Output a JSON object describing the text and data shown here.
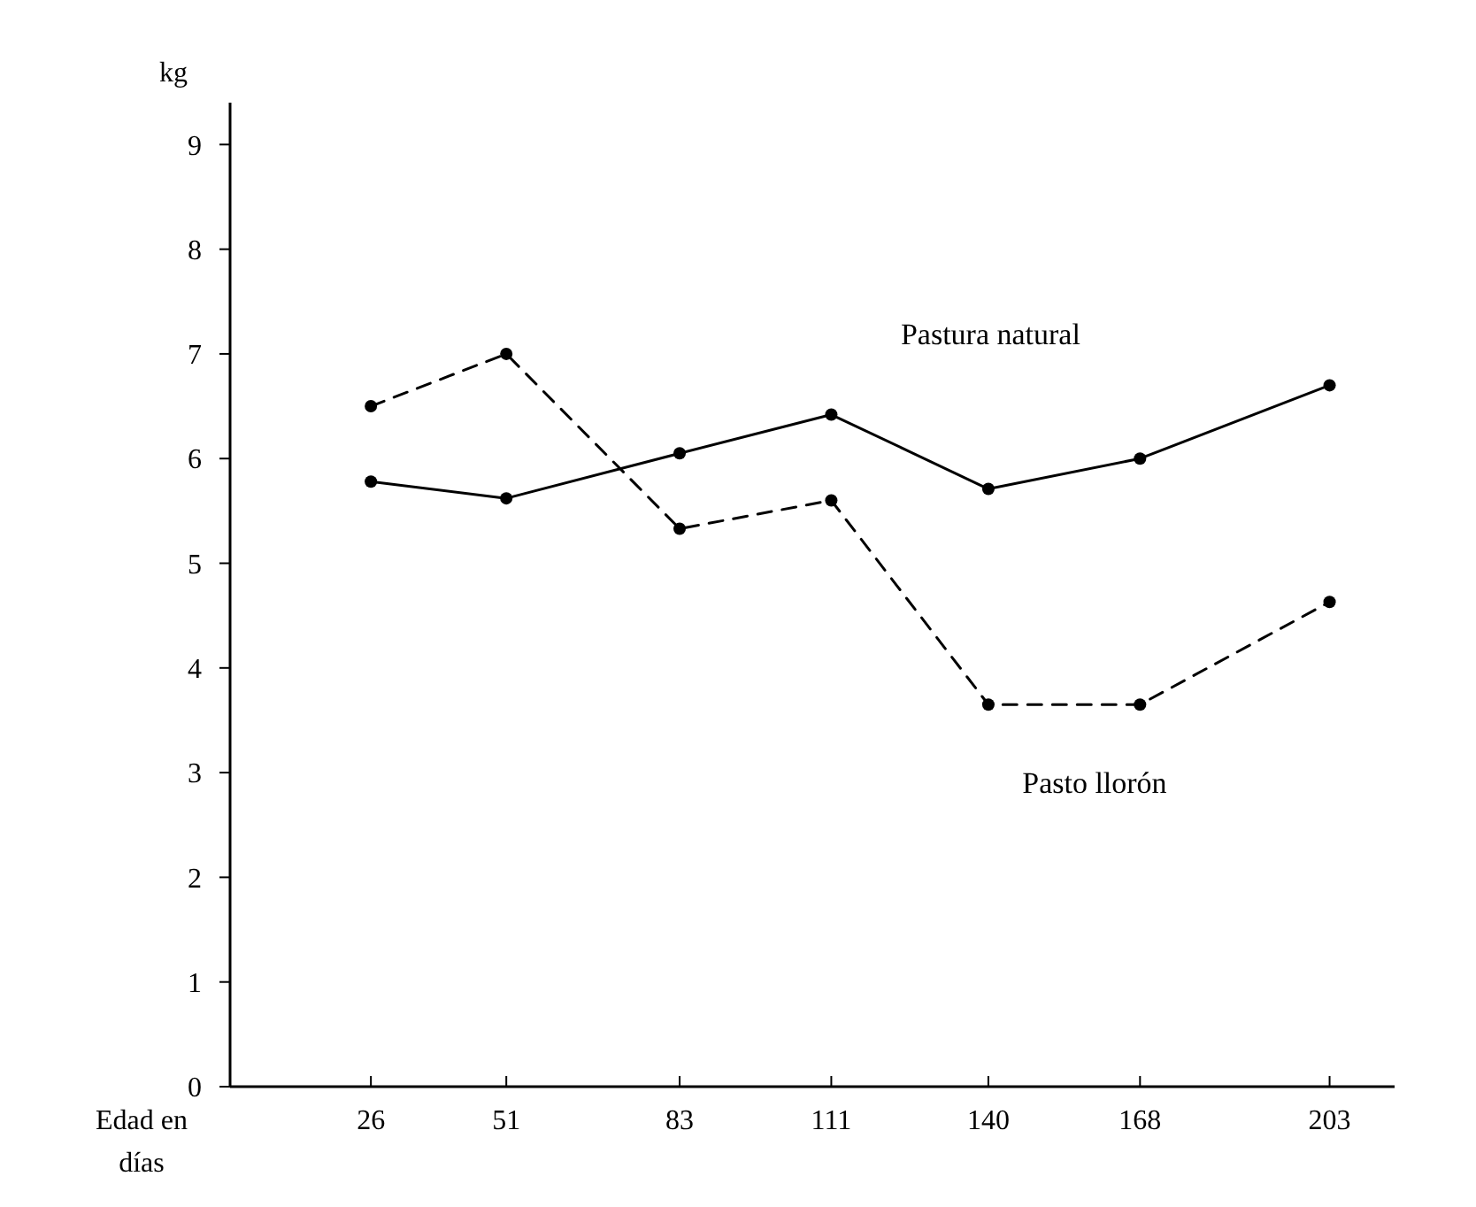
{
  "chart_data": {
    "type": "line",
    "ylabel": "kg",
    "xlabel": "Edad en días",
    "x": [
      26,
      51,
      83,
      111,
      140,
      168,
      203
    ],
    "xlim": [
      0,
      215
    ],
    "xticks": [
      26,
      51,
      83,
      111,
      140,
      168,
      203
    ],
    "ylim": [
      0,
      9.4
    ],
    "yticks": [
      0,
      1,
      2,
      3,
      4,
      5,
      6,
      7,
      8,
      9
    ],
    "marker": "circle",
    "grid": false,
    "series": [
      {
        "name": "Pastura natural",
        "color": "#000000",
        "line_style": "solid",
        "values": [
          5.78,
          5.62,
          6.05,
          6.42,
          5.71,
          6.0,
          6.7
        ]
      },
      {
        "name": "Pasto llorón",
        "color": "#000000",
        "line_style": "dashed",
        "values": [
          6.5,
          7.0,
          5.33,
          5.6,
          3.65,
          3.65,
          4.63
        ]
      }
    ]
  }
}
